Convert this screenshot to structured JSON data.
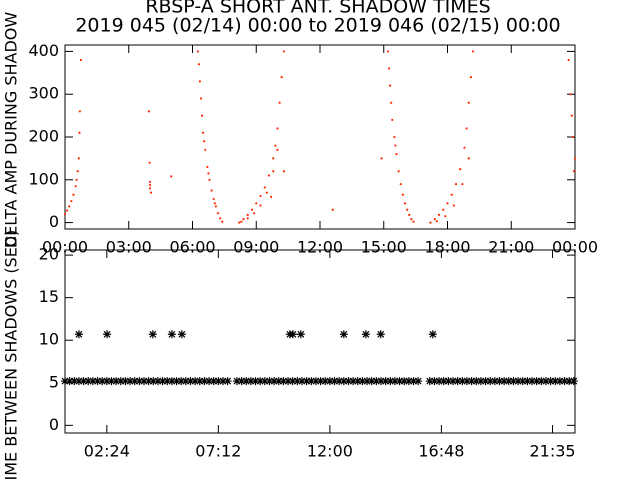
{
  "title": "RBSP-A SHORT ANT. SHADOW TIMES",
  "subtitle": "2019 045 (02/14) 00:00 to 2019 046 (02/15) 00:00",
  "chart_data": [
    {
      "type": "scatter",
      "y_label": "DELTA AMP DURING SHADOW",
      "xlim": [
        0,
        24
      ],
      "ylim": [
        -15,
        415
      ],
      "xticks": [
        {
          "value": 0,
          "label": "00:00"
        },
        {
          "value": 3,
          "label": "03:00"
        },
        {
          "value": 6,
          "label": "06:00"
        },
        {
          "value": 9,
          "label": "09:00"
        },
        {
          "value": 12,
          "label": "12:00"
        },
        {
          "value": 15,
          "label": "15:00"
        },
        {
          "value": 18,
          "label": "18:00"
        },
        {
          "value": 21,
          "label": "21:00"
        },
        {
          "value": 24,
          "label": "00:00"
        }
      ],
      "yticks": [
        0,
        100,
        200,
        300,
        400
      ],
      "series": [
        {
          "color": "#ff2a00",
          "marker": "dot",
          "x": [
            0,
            0.1,
            0.2,
            0.3,
            0.4,
            0.5,
            0.55,
            0.6,
            0.65,
            0.68,
            0.7,
            0.75,
            3.95,
            3.98,
            4.0,
            4.0,
            4.0,
            4.05,
            5.0,
            6.25,
            6.3,
            6.35,
            6.4,
            6.45,
            6.5,
            6.55,
            6.6,
            6.7,
            6.75,
            6.8,
            6.9,
            7.0,
            7.05,
            7.1,
            7.2,
            7.3,
            7.4,
            8.2,
            8.4,
            8.6,
            8.8,
            9.0,
            9.2,
            9.4,
            9.6,
            9.8,
            9.9,
            10.0,
            10.1,
            10.2,
            10.3,
            8.3,
            8.6,
            8.9,
            9.2,
            9.5,
            9.8,
            10.0,
            9.7,
            10.3,
            12.6,
            14.9,
            15.2,
            15.25,
            15.3,
            15.35,
            15.4,
            15.5,
            15.55,
            15.6,
            15.7,
            15.8,
            15.9,
            16.0,
            16.1,
            16.2,
            16.3,
            16.4,
            17.2,
            17.4,
            17.6,
            17.8,
            18.0,
            18.2,
            18.4,
            18.6,
            18.8,
            18.9,
            19.0,
            19.1,
            19.2,
            17.5,
            17.9,
            18.3,
            18.7,
            19.0,
            23.7,
            23.8,
            23.85,
            23.9,
            23.95,
            24.0
          ],
          "values": [
            20,
            28,
            38,
            50,
            65,
            85,
            100,
            120,
            150,
            210,
            260,
            380,
            260,
            140,
            80,
            95,
            88,
            70,
            108,
            400,
            370,
            330,
            290,
            250,
            210,
            190,
            170,
            130,
            115,
            100,
            75,
            55,
            45,
            38,
            22,
            10,
            2,
            0,
            8,
            18,
            30,
            45,
            62,
            82,
            110,
            150,
            180,
            220,
            280,
            340,
            400,
            2,
            10,
            22,
            40,
            70,
            120,
            170,
            60,
            120,
            30,
            150,
            400,
            360,
            320,
            280,
            240,
            200,
            180,
            160,
            120,
            90,
            65,
            45,
            30,
            18,
            8,
            2,
            0,
            8,
            18,
            30,
            45,
            65,
            90,
            125,
            175,
            220,
            280,
            340,
            400,
            3,
            15,
            40,
            90,
            150,
            380,
            300,
            250,
            200,
            120,
            150
          ]
        }
      ]
    },
    {
      "type": "scatter",
      "y_label": "TIME BETWEEN SHADOWS (SEC)",
      "xlim": [
        0.6,
        22.55
      ],
      "ylim": [
        -0.9,
        20.6
      ],
      "xticks": [
        {
          "value": 2.4,
          "label": "02:24"
        },
        {
          "value": 7.2,
          "label": "07:12"
        },
        {
          "value": 12,
          "label": "12:00"
        },
        {
          "value": 16.8,
          "label": "16:48"
        },
        {
          "value": 21.583,
          "label": "21:35"
        }
      ],
      "yticks": [
        0,
        5,
        10,
        15,
        20
      ],
      "series": [
        {
          "color": "#000000",
          "marker": "star",
          "x": [
            1.2,
            2.41,
            4.38,
            5.2,
            5.63,
            10.28,
            10.41,
            10.75,
            12.6,
            13.55,
            14.19,
            16.43
          ],
          "values": [
            10.7,
            10.7,
            10.7,
            10.7,
            10.7,
            10.7,
            10.7,
            10.7,
            10.7,
            10.7,
            10.7,
            10.7
          ]
        },
        {
          "color": "#000000",
          "marker": "star",
          "x": [
            0.6,
            0.8,
            1.0,
            1.2,
            1.4,
            1.6,
            1.8,
            2.0,
            2.2,
            2.4,
            2.6,
            2.8,
            3.0,
            3.2,
            3.4,
            3.6,
            3.8,
            4.0,
            4.2,
            4.4,
            4.6,
            4.8,
            5.0,
            5.2,
            5.4,
            5.6,
            5.8,
            6.0,
            6.2,
            6.4,
            6.6,
            6.8,
            7.0,
            7.2,
            7.4,
            7.6,
            8.0,
            8.2,
            8.4,
            8.6,
            8.8,
            9.0,
            9.2,
            9.4,
            9.6,
            9.8,
            10.0,
            10.2,
            10.4,
            10.6,
            10.8,
            11.0,
            11.2,
            11.4,
            11.6,
            11.8,
            12.0,
            12.2,
            12.4,
            12.6,
            12.8,
            13.0,
            13.2,
            13.4,
            13.6,
            13.8,
            14.0,
            14.2,
            14.4,
            14.6,
            14.8,
            15.0,
            15.2,
            15.4,
            15.6,
            15.8,
            16.3,
            16.5,
            16.7,
            16.9,
            17.1,
            17.3,
            17.5,
            17.7,
            17.9,
            18.1,
            18.3,
            18.5,
            18.7,
            18.9,
            19.1,
            19.3,
            19.5,
            19.7,
            19.9,
            20.1,
            20.3,
            20.5,
            20.7,
            20.9,
            21.1,
            21.3,
            21.5,
            21.7,
            21.9,
            22.1,
            22.3,
            22.5
          ],
          "values": [
            5.2,
            5.2,
            5.2,
            5.2,
            5.2,
            5.2,
            5.2,
            5.2,
            5.2,
            5.2,
            5.2,
            5.2,
            5.2,
            5.2,
            5.2,
            5.2,
            5.2,
            5.2,
            5.2,
            5.2,
            5.2,
            5.2,
            5.2,
            5.2,
            5.2,
            5.2,
            5.2,
            5.2,
            5.2,
            5.2,
            5.2,
            5.2,
            5.2,
            5.2,
            5.2,
            5.2,
            5.2,
            5.2,
            5.2,
            5.2,
            5.2,
            5.2,
            5.2,
            5.2,
            5.2,
            5.2,
            5.2,
            5.2,
            5.2,
            5.2,
            5.2,
            5.2,
            5.2,
            5.2,
            5.2,
            5.2,
            5.2,
            5.2,
            5.2,
            5.2,
            5.2,
            5.2,
            5.2,
            5.2,
            5.2,
            5.2,
            5.2,
            5.2,
            5.2,
            5.2,
            5.2,
            5.2,
            5.2,
            5.2,
            5.2,
            5.2,
            5.2,
            5.2,
            5.2,
            5.2,
            5.2,
            5.2,
            5.2,
            5.2,
            5.2,
            5.2,
            5.2,
            5.2,
            5.2,
            5.2,
            5.2,
            5.2,
            5.2,
            5.2,
            5.2,
            5.2,
            5.2,
            5.2,
            5.2,
            5.2,
            5.2,
            5.2,
            5.2,
            5.2,
            5.2,
            5.2,
            5.2,
            5.2
          ]
        }
      ]
    }
  ]
}
